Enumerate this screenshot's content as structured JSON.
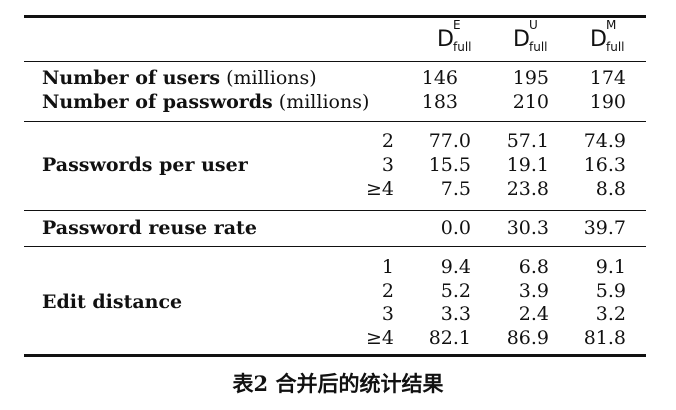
{
  "table": {
    "headers": [
      {
        "base": "D",
        "sup": "E",
        "sub": "full"
      },
      {
        "base": "D",
        "sup": "U",
        "sub": "full"
      },
      {
        "base": "D",
        "sup": "M",
        "sub": "full"
      }
    ],
    "sections": [
      {
        "rows": [
          {
            "label_bold": "Number of users",
            "label_extra": " (millions)",
            "values": [
              "146",
              "195",
              "174"
            ]
          },
          {
            "label_bold": "Number of passwords",
            "label_extra": " (millions)",
            "values": [
              "183",
              "210",
              "190"
            ]
          }
        ]
      },
      {
        "label": "Passwords per user",
        "rows": [
          {
            "sub": "2",
            "values": [
              "77.0",
              "57.1",
              "74.9"
            ]
          },
          {
            "sub": "3",
            "values": [
              "15.5",
              "19.1",
              "16.3"
            ]
          },
          {
            "sub": "≥4",
            "values": [
              "7.5",
              "23.8",
              "8.8"
            ]
          }
        ]
      },
      {
        "label": "Password reuse rate",
        "rows": [
          {
            "values": [
              "0.0",
              "30.3",
              "39.7"
            ]
          }
        ]
      },
      {
        "label": "Edit distance",
        "rows": [
          {
            "sub": "1",
            "values": [
              "9.4",
              "6.8",
              "9.1"
            ]
          },
          {
            "sub": "2",
            "values": [
              "5.2",
              "3.9",
              "5.9"
            ]
          },
          {
            "sub": "3",
            "values": [
              "3.3",
              "2.4",
              "3.2"
            ]
          },
          {
            "sub": "≥4",
            "values": [
              "82.1",
              "86.9",
              "81.8"
            ]
          }
        ]
      }
    ]
  },
  "caption": "表2 合并后的统计结果"
}
